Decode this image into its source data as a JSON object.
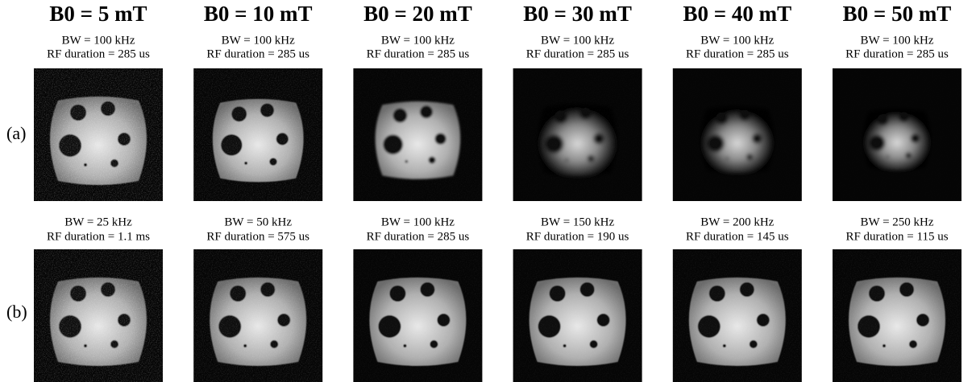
{
  "row_labels": [
    "(a)",
    "(b)"
  ],
  "columns": [
    {
      "title": "B0 = 5 mT",
      "a_bw": "BW = 100 kHz",
      "a_rf": "RF duration = 285 us",
      "b_bw": "BW = 25 kHz",
      "b_rf": "RF duration = 1.1 ms"
    },
    {
      "title": "B0 = 10 mT",
      "a_bw": "BW = 100 kHz",
      "a_rf": "RF duration = 285 us",
      "b_bw": "BW = 50 kHz",
      "b_rf": "RF duration = 575 us"
    },
    {
      "title": "B0 = 20 mT",
      "a_bw": "BW = 100 kHz",
      "a_rf": "RF duration = 285 us",
      "b_bw": "BW = 100 kHz",
      "b_rf": "RF duration = 285 us"
    },
    {
      "title": "B0 = 30 mT",
      "a_bw": "BW = 100 kHz",
      "a_rf": "RF duration = 285 us",
      "b_bw": "BW = 150 kHz",
      "b_rf": "RF duration = 190 us"
    },
    {
      "title": "B0 = 40 mT",
      "a_bw": "BW = 100 kHz",
      "a_rf": "RF duration = 285 us",
      "b_bw": "BW = 200 kHz",
      "b_rf": "RF duration = 145 us"
    },
    {
      "title": "B0 = 50 mT",
      "a_bw": "BW = 100 kHz",
      "a_rf": "RF duration = 285 us",
      "b_bw": "BW = 250 kHz",
      "b_rf": "RF duration = 115 us"
    }
  ]
}
